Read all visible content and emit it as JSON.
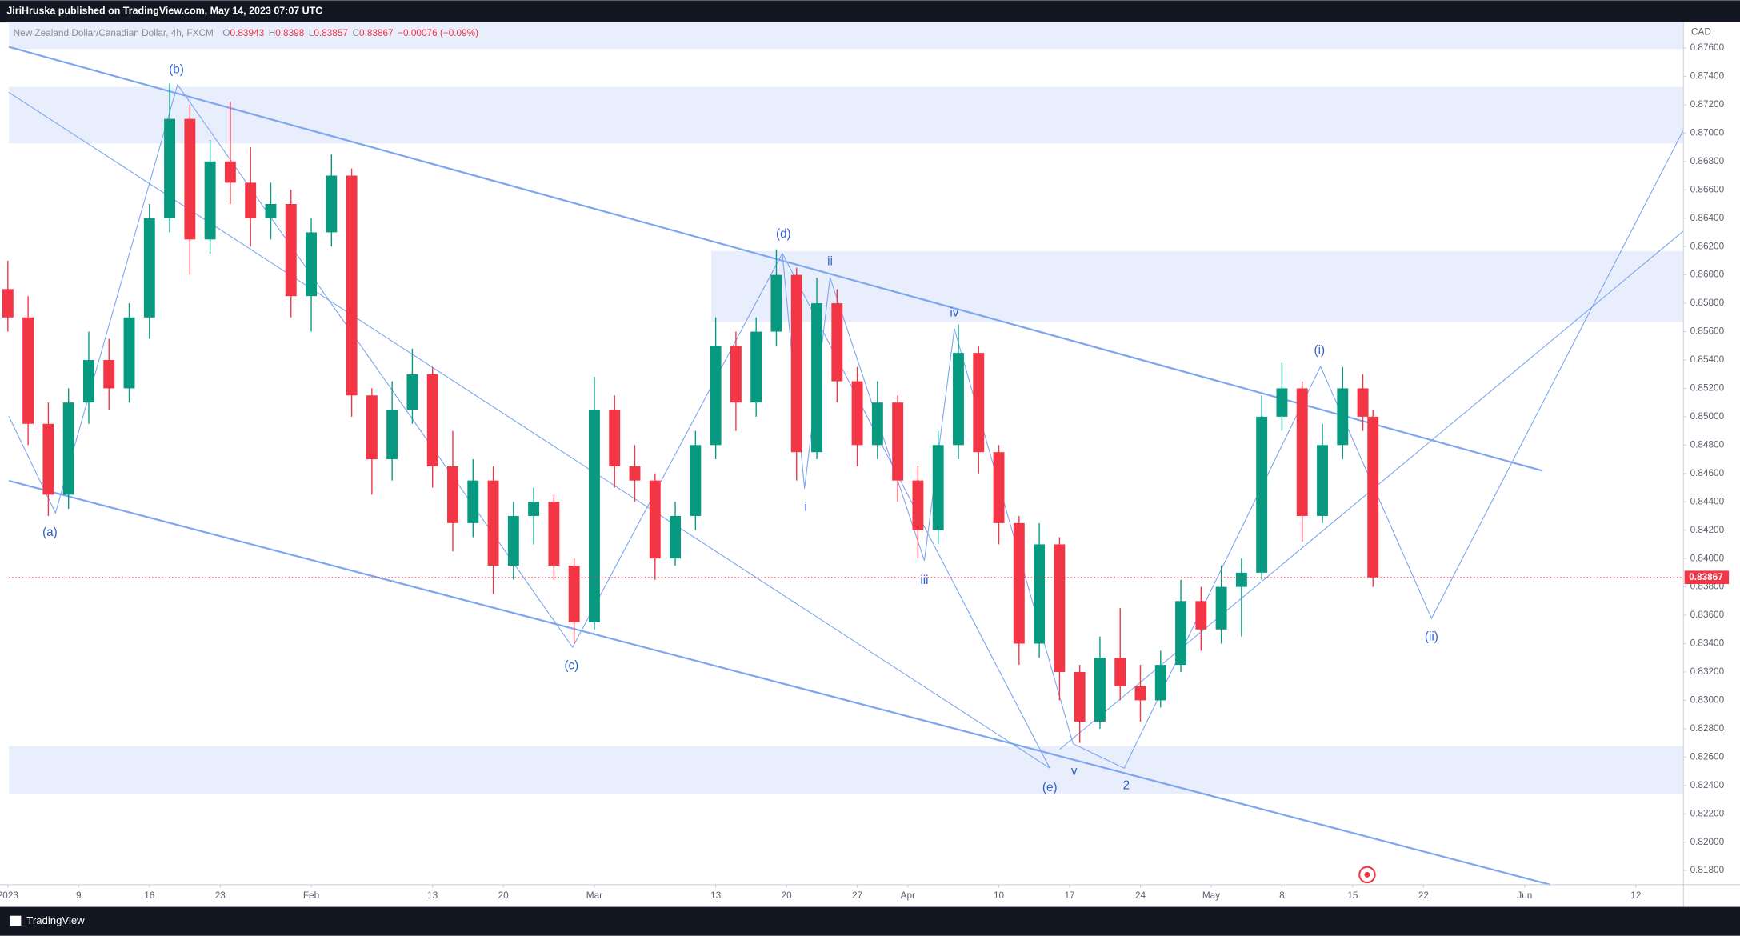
{
  "header": {
    "publisher": "JiriHruska published on TradingView.com, May 14, 2023 07:07 UTC",
    "ohlc": [
      {
        "label": "O",
        "value": 0.83943
      },
      {
        "label": "H",
        "value": 0.8398
      },
      {
        "label": "L",
        "value": 0.83857
      },
      {
        "label": "C",
        "value": 0.83867
      }
    ],
    "change": "−0.00076 (−0.09%)",
    "currency": "CAD"
  },
  "footer": {
    "brand": "TradingView"
  },
  "chart_data": {
    "type": "candlestick",
    "title": "New Zealand Dollar/Canadian Dollar, 4h, FXCM",
    "up_color": "#089981",
    "down_color": "#f23645",
    "x": [
      1,
      3,
      5,
      7,
      9,
      11,
      13,
      15,
      17,
      19,
      21,
      23,
      25,
      27,
      29,
      31,
      33,
      35,
      37,
      39,
      41,
      43,
      45,
      47,
      49,
      51,
      53,
      55,
      57,
      59,
      61,
      63,
      65,
      67,
      69,
      71,
      73,
      75,
      77,
      79,
      81,
      83,
      85,
      87,
      89,
      91,
      93,
      95,
      97,
      99,
      101,
      103,
      105,
      107,
      109,
      111,
      113,
      115,
      117,
      119,
      121,
      123,
      125,
      127,
      129,
      131,
      133,
      135,
      136
    ],
    "open": [
      0.859,
      0.857,
      0.8495,
      0.8445,
      0.851,
      0.854,
      0.852,
      0.857,
      0.864,
      0.871,
      0.8625,
      0.868,
      0.8665,
      0.864,
      0.865,
      0.8585,
      0.863,
      0.867,
      0.8515,
      0.847,
      0.8505,
      0.853,
      0.8465,
      0.8425,
      0.8455,
      0.8395,
      0.843,
      0.844,
      0.8395,
      0.8355,
      0.8505,
      0.8465,
      0.8455,
      0.84,
      0.843,
      0.848,
      0.855,
      0.851,
      0.856,
      0.86,
      0.8475,
      0.858,
      0.8525,
      0.848,
      0.851,
      0.8455,
      0.842,
      0.848,
      0.8545,
      0.8475,
      0.8425,
      0.834,
      0.841,
      0.832,
      0.8285,
      0.833,
      0.831,
      0.83,
      0.8325,
      0.837,
      0.835,
      0.838,
      0.839,
      0.85,
      0.852,
      0.843,
      0.848,
      0.852,
      0.85
    ],
    "high": [
      0.861,
      0.8585,
      0.851,
      0.852,
      0.856,
      0.8555,
      0.858,
      0.865,
      0.8735,
      0.872,
      0.8695,
      0.8722,
      0.869,
      0.8665,
      0.866,
      0.864,
      0.8685,
      0.8675,
      0.852,
      0.8525,
      0.8548,
      0.8535,
      0.849,
      0.847,
      0.8465,
      0.844,
      0.845,
      0.8445,
      0.84,
      0.8528,
      0.8515,
      0.848,
      0.846,
      0.844,
      0.849,
      0.857,
      0.856,
      0.857,
      0.8618,
      0.8605,
      0.8598,
      0.859,
      0.8535,
      0.8525,
      0.8515,
      0.8465,
      0.849,
      0.8565,
      0.855,
      0.848,
      0.843,
      0.8425,
      0.8415,
      0.8325,
      0.8345,
      0.8365,
      0.8325,
      0.8335,
      0.8385,
      0.838,
      0.8395,
      0.84,
      0.8515,
      0.8538,
      0.8525,
      0.8495,
      0.8535,
      0.853,
      0.8505
    ],
    "low": [
      0.856,
      0.848,
      0.843,
      0.8435,
      0.8495,
      0.8505,
      0.851,
      0.8555,
      0.863,
      0.86,
      0.8615,
      0.865,
      0.862,
      0.8625,
      0.857,
      0.856,
      0.862,
      0.85,
      0.8445,
      0.8455,
      0.8495,
      0.845,
      0.8405,
      0.8415,
      0.8375,
      0.8385,
      0.841,
      0.8385,
      0.834,
      0.835,
      0.845,
      0.844,
      0.8385,
      0.8395,
      0.842,
      0.847,
      0.849,
      0.85,
      0.855,
      0.8455,
      0.847,
      0.851,
      0.8465,
      0.847,
      0.844,
      0.84,
      0.841,
      0.847,
      0.846,
      0.841,
      0.8325,
      0.833,
      0.83,
      0.827,
      0.828,
      0.83,
      0.8285,
      0.8295,
      0.832,
      0.8335,
      0.834,
      0.8345,
      0.8385,
      0.849,
      0.8412,
      0.8425,
      0.847,
      0.849,
      0.838
    ],
    "close": [
      0.857,
      0.8495,
      0.8445,
      0.851,
      0.854,
      0.852,
      0.857,
      0.864,
      0.871,
      0.8625,
      0.868,
      0.8665,
      0.864,
      0.865,
      0.8585,
      0.863,
      0.867,
      0.8515,
      0.847,
      0.8505,
      0.853,
      0.8465,
      0.8425,
      0.8455,
      0.8395,
      0.843,
      0.844,
      0.8395,
      0.8355,
      0.8505,
      0.8465,
      0.8455,
      0.84,
      0.843,
      0.848,
      0.855,
      0.851,
      0.856,
      0.86,
      0.8475,
      0.858,
      0.8525,
      0.848,
      0.851,
      0.8455,
      0.842,
      0.848,
      0.8545,
      0.8475,
      0.8425,
      0.834,
      0.841,
      0.832,
      0.8285,
      0.833,
      0.831,
      0.83,
      0.8325,
      0.837,
      0.835,
      0.838,
      0.839,
      0.85,
      0.852,
      0.843,
      0.848,
      0.852,
      0.85,
      0.83867
    ],
    "xlim": [
      1.1,
      166.7
    ],
    "xticks": [
      {
        "value": 1,
        "label": "2023"
      },
      {
        "value": 8,
        "label": "9"
      },
      {
        "value": 15,
        "label": "16"
      },
      {
        "value": 22,
        "label": "23"
      },
      {
        "value": 31,
        "label": "Feb"
      },
      {
        "value": 43,
        "label": "13"
      },
      {
        "value": 50,
        "label": "20"
      },
      {
        "value": 59,
        "label": "Mar"
      },
      {
        "value": 71,
        "label": "13"
      },
      {
        "value": 78,
        "label": "20"
      },
      {
        "value": 85,
        "label": "27"
      },
      {
        "value": 90,
        "label": "Apr"
      },
      {
        "value": 99,
        "label": "10"
      },
      {
        "value": 106,
        "label": "17"
      },
      {
        "value": 113,
        "label": "24"
      },
      {
        "value": 120,
        "label": "May"
      },
      {
        "value": 127,
        "label": "8"
      },
      {
        "value": 134,
        "label": "15"
      },
      {
        "value": 141,
        "label": "22"
      },
      {
        "value": 151,
        "label": "Jun"
      },
      {
        "value": 162,
        "label": "12"
      }
    ],
    "ylim": [
      0.817,
      0.8778
    ],
    "yticks": [
      {
        "value": 0.818,
        "label": "0.81800"
      },
      {
        "value": 0.82,
        "label": "0.82000"
      },
      {
        "value": 0.822,
        "label": "0.82200"
      },
      {
        "value": 0.824,
        "label": "0.82400"
      },
      {
        "value": 0.826,
        "label": "0.82600"
      },
      {
        "value": 0.828,
        "label": "0.82800"
      },
      {
        "value": 0.83,
        "label": "0.83000"
      },
      {
        "value": 0.832,
        "label": "0.83200"
      },
      {
        "value": 0.834,
        "label": "0.83400"
      },
      {
        "value": 0.836,
        "label": "0.83600"
      },
      {
        "value": 0.838,
        "label": "0.83800"
      },
      {
        "value": 0.84,
        "label": "0.84000"
      },
      {
        "value": 0.842,
        "label": "0.84200"
      },
      {
        "value": 0.844,
        "label": "0.84400"
      },
      {
        "value": 0.846,
        "label": "0.84600"
      },
      {
        "value": 0.848,
        "label": "0.84800"
      },
      {
        "value": 0.85,
        "label": "0.85000"
      },
      {
        "value": 0.852,
        "label": "0.85200"
      },
      {
        "value": 0.854,
        "label": "0.85400"
      },
      {
        "value": 0.856,
        "label": "0.85600"
      },
      {
        "value": 0.858,
        "label": "0.85800"
      },
      {
        "value": 0.86,
        "label": "0.86000"
      },
      {
        "value": 0.862,
        "label": "0.86200"
      },
      {
        "value": 0.864,
        "label": "0.86400"
      },
      {
        "value": 0.866,
        "label": "0.86600"
      },
      {
        "value": 0.868,
        "label": "0.86800"
      },
      {
        "value": 0.87,
        "label": "0.87000"
      },
      {
        "value": 0.872,
        "label": "0.87200"
      },
      {
        "value": 0.874,
        "label": "0.87400"
      },
      {
        "value": 0.876,
        "label": "0.87600"
      }
    ],
    "grid": false,
    "annotations": [
      "(a)",
      "(b)",
      "(c)",
      "(d)",
      "i",
      "ii",
      "iii",
      "iv",
      "v",
      "(e)",
      "2",
      "(i)",
      "(ii)"
    ]
  }
}
